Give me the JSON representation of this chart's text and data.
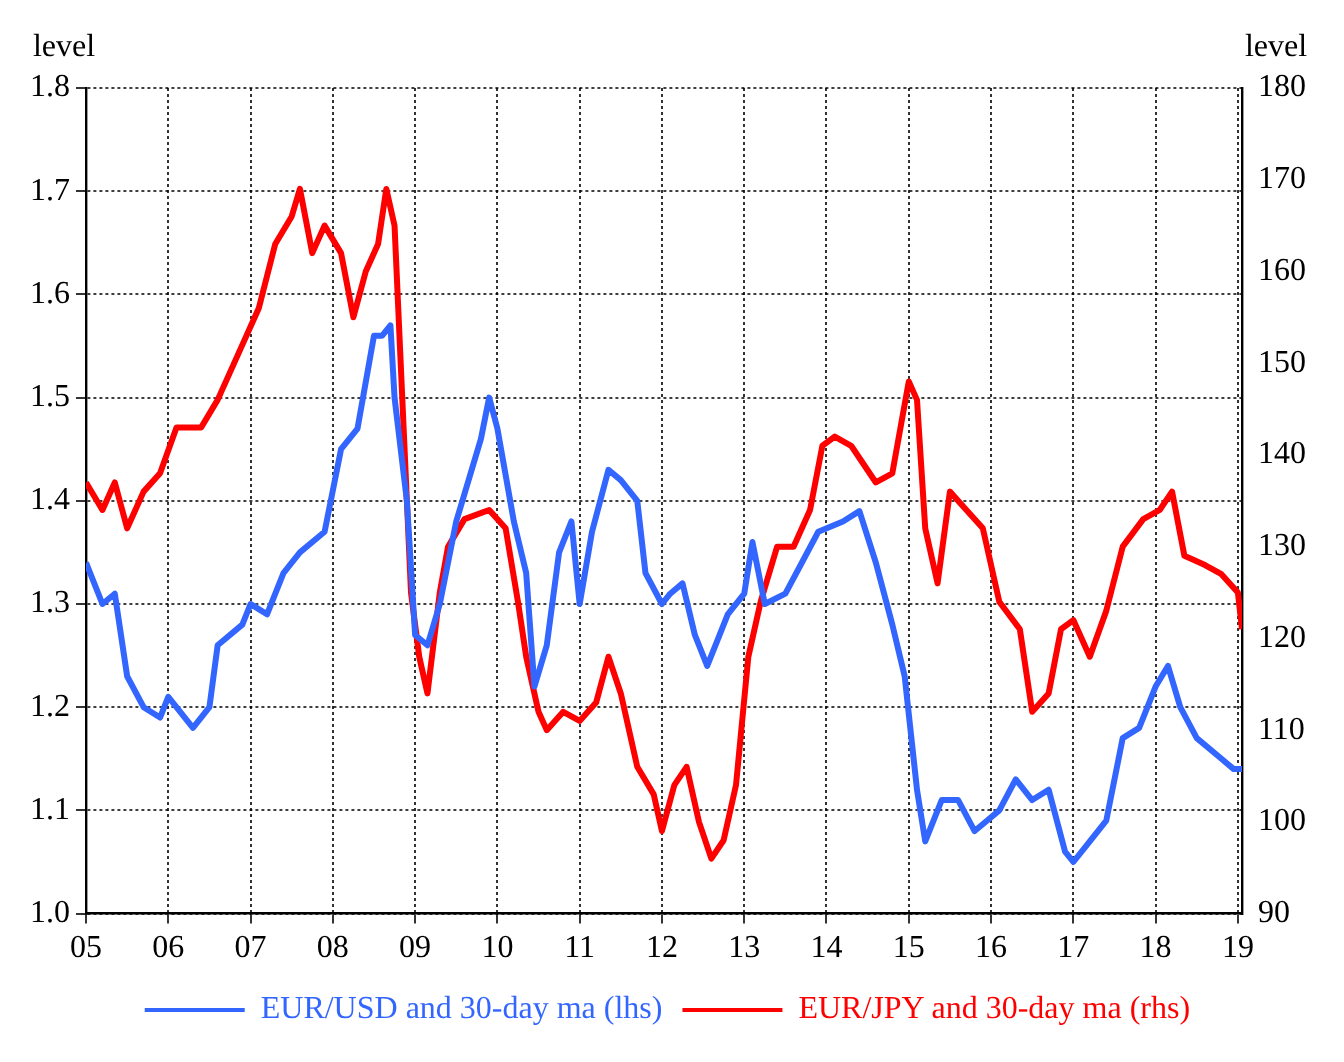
{
  "chart_data": {
    "type": "line",
    "ylabel": "level",
    "y2label": "level",
    "legend": "bottom",
    "grid": true,
    "marker": "none",
    "line_style": "solid",
    "xlim": [
      2005,
      2019.05
    ],
    "xticks": [
      {
        "value": 2005,
        "label": "05"
      },
      {
        "value": 2006,
        "label": "06"
      },
      {
        "value": 2007,
        "label": "07"
      },
      {
        "value": 2008,
        "label": "08"
      },
      {
        "value": 2009,
        "label": "09"
      },
      {
        "value": 2010,
        "label": "10"
      },
      {
        "value": 2011,
        "label": "11"
      },
      {
        "value": 2012,
        "label": "12"
      },
      {
        "value": 2013,
        "label": "13"
      },
      {
        "value": 2014,
        "label": "14"
      },
      {
        "value": 2015,
        "label": "15"
      },
      {
        "value": 2016,
        "label": "16"
      },
      {
        "value": 2017,
        "label": "17"
      },
      {
        "value": 2018,
        "label": "18"
      },
      {
        "value": 2019,
        "label": "19"
      }
    ],
    "ylim": [
      1.0,
      1.8
    ],
    "yticks": [
      {
        "value": 1.0,
        "label": "1.0"
      },
      {
        "value": 1.1,
        "label": "1.1"
      },
      {
        "value": 1.2,
        "label": "1.2"
      },
      {
        "value": 1.3,
        "label": "1.3"
      },
      {
        "value": 1.4,
        "label": "1.4"
      },
      {
        "value": 1.5,
        "label": "1.5"
      },
      {
        "value": 1.6,
        "label": "1.6"
      },
      {
        "value": 1.7,
        "label": "1.7"
      },
      {
        "value": 1.8,
        "label": "1.8"
      }
    ],
    "y2lim": [
      90,
      180
    ],
    "y2ticks": [
      90,
      100,
      110,
      120,
      130,
      140,
      150,
      160,
      170,
      180
    ],
    "series": [
      {
        "name": "EUR/USD and 30-day ma (lhs)",
        "color": "#3366ff",
        "x": [
          2005.0,
          2005.2,
          2005.35,
          2005.5,
          2005.7,
          2005.9,
          2006.0,
          2006.3,
          2006.5,
          2006.6,
          2006.9,
          2007.0,
          2007.2,
          2007.4,
          2007.6,
          2007.9,
          2008.1,
          2008.3,
          2008.5,
          2008.6,
          2008.7,
          2008.75,
          2008.9,
          2009.0,
          2009.15,
          2009.3,
          2009.5,
          2009.8,
          2009.9,
          2010.0,
          2010.2,
          2010.35,
          2010.45,
          2010.6,
          2010.75,
          2010.9,
          2011.0,
          2011.15,
          2011.35,
          2011.5,
          2011.7,
          2011.8,
          2012.0,
          2012.1,
          2012.25,
          2012.4,
          2012.55,
          2012.65,
          2012.8,
          2013.0,
          2013.1,
          2013.25,
          2013.5,
          2013.7,
          2013.9,
          2014.2,
          2014.4,
          2014.6,
          2014.8,
          2014.95,
          2015.1,
          2015.2,
          2015.4,
          2015.6,
          2015.8,
          2015.95,
          2016.1,
          2016.3,
          2016.5,
          2016.7,
          2016.9,
          2017.0,
          2017.2,
          2017.4,
          2017.6,
          2017.8,
          2018.0,
          2018.15,
          2018.3,
          2018.5,
          2018.8,
          2018.95,
          2019.05
        ],
        "values": [
          1.34,
          1.3,
          1.31,
          1.23,
          1.2,
          1.19,
          1.21,
          1.18,
          1.2,
          1.26,
          1.28,
          1.3,
          1.29,
          1.33,
          1.35,
          1.37,
          1.45,
          1.47,
          1.56,
          1.56,
          1.57,
          1.5,
          1.4,
          1.27,
          1.26,
          1.3,
          1.38,
          1.46,
          1.5,
          1.47,
          1.38,
          1.33,
          1.22,
          1.26,
          1.35,
          1.38,
          1.3,
          1.37,
          1.43,
          1.42,
          1.4,
          1.33,
          1.3,
          1.31,
          1.32,
          1.27,
          1.24,
          1.26,
          1.29,
          1.31,
          1.36,
          1.3,
          1.31,
          1.34,
          1.37,
          1.38,
          1.39,
          1.34,
          1.28,
          1.23,
          1.12,
          1.07,
          1.11,
          1.11,
          1.08,
          1.09,
          1.1,
          1.13,
          1.11,
          1.12,
          1.06,
          1.05,
          1.07,
          1.09,
          1.17,
          1.18,
          1.22,
          1.24,
          1.2,
          1.17,
          1.15,
          1.14,
          1.14
        ]
      },
      {
        "name": "EUR/JPY and 30-day ma (rhs)",
        "color": "#ff0000",
        "axis": "y2",
        "x": [
          2005.0,
          2005.2,
          2005.35,
          2005.5,
          2005.7,
          2005.9,
          2006.1,
          2006.4,
          2006.6,
          2006.9,
          2007.1,
          2007.3,
          2007.5,
          2007.6,
          2007.75,
          2007.9,
          2008.1,
          2008.25,
          2008.4,
          2008.55,
          2008.65,
          2008.75,
          2008.85,
          2008.95,
          2009.05,
          2009.15,
          2009.3,
          2009.4,
          2009.6,
          2009.9,
          2010.1,
          2010.25,
          2010.35,
          2010.5,
          2010.6,
          2010.8,
          2011.0,
          2011.2,
          2011.35,
          2011.5,
          2011.7,
          2011.9,
          2012.0,
          2012.15,
          2012.3,
          2012.45,
          2012.6,
          2012.75,
          2012.9,
          2013.05,
          2013.2,
          2013.4,
          2013.6,
          2013.8,
          2013.95,
          2014.1,
          2014.3,
          2014.6,
          2014.8,
          2015.0,
          2015.1,
          2015.2,
          2015.35,
          2015.5,
          2015.7,
          2015.9,
          2016.1,
          2016.35,
          2016.5,
          2016.7,
          2016.85,
          2017.0,
          2017.2,
          2017.4,
          2017.6,
          2017.85,
          2018.05,
          2018.2,
          2018.35,
          2018.6,
          2018.8,
          2019.0,
          2019.05
        ],
        "values": [
          137,
          134,
          137,
          132,
          136,
          138,
          143,
          143,
          146,
          152,
          156,
          163,
          166,
          169,
          162,
          165,
          162,
          155,
          160,
          163,
          169,
          165,
          145,
          125,
          118,
          114,
          125,
          130,
          133,
          134,
          132,
          124,
          118,
          112,
          110,
          112,
          111,
          113,
          118,
          114,
          106,
          103,
          99,
          104,
          106,
          100,
          96,
          98,
          104,
          118,
          124,
          130,
          130,
          134,
          141,
          142,
          141,
          137,
          138,
          148,
          146,
          132,
          126,
          136,
          134,
          132,
          124,
          121,
          112,
          114,
          121,
          122,
          118,
          123,
          130,
          133,
          134,
          136,
          129,
          128,
          127,
          125,
          121
        ]
      }
    ]
  }
}
